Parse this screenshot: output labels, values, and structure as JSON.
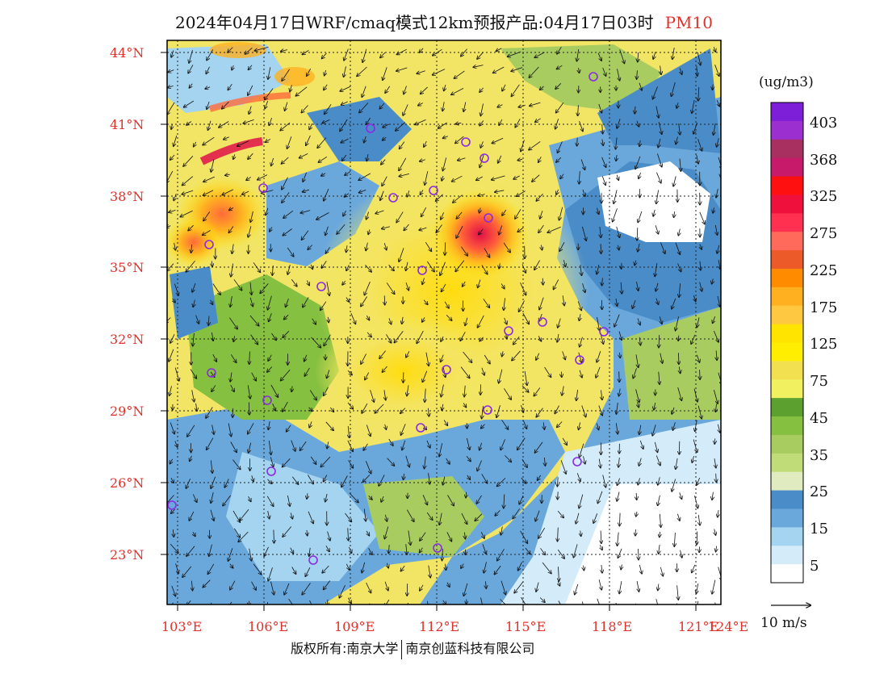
{
  "title": {
    "main": "2024年04月17日WRF/cmaq模式12km预报产品:04月17日03时",
    "variable": "PM10"
  },
  "lat_labels": [
    "44°N",
    "41°N",
    "38°N",
    "35°N",
    "32°N",
    "29°N",
    "26°N",
    "23°N"
  ],
  "lon_labels": [
    "103°E",
    "106°E",
    "109°E",
    "112°E",
    "115°E",
    "118°E",
    "121°E",
    "124°E"
  ],
  "colorbar": {
    "unit": "(ug/m3)",
    "labels": [
      "403",
      "368",
      "325",
      "275",
      "225",
      "175",
      "125",
      "75",
      "45",
      "35",
      "25",
      "15",
      "5"
    ],
    "colors": [
      "#7d1fd8",
      "#9b2fd0",
      "#a83060",
      "#c81a6a",
      "#ff1010",
      "#f0103c",
      "#ff3050",
      "#ff6a5a",
      "#ec5a2a",
      "#ff8c00",
      "#ffb020",
      "#ffc840",
      "#ffe400",
      "#ffee00",
      "#f2e050",
      "#f0f060",
      "#5ca030",
      "#86c040",
      "#a8cc60",
      "#c0dc78",
      "#e0ecc0",
      "#4a8cc8",
      "#6aa8dc",
      "#a4d4f0",
      "#d4ecfa",
      "#ffffff"
    ]
  },
  "wind_scale": "10 m/s",
  "footer": {
    "left": "版权所有:南京大学",
    "right": "南京创蓝科技有限公司"
  },
  "colors": {
    "axis_label": "#e0302a",
    "station_marker": "#8a2be2"
  }
}
